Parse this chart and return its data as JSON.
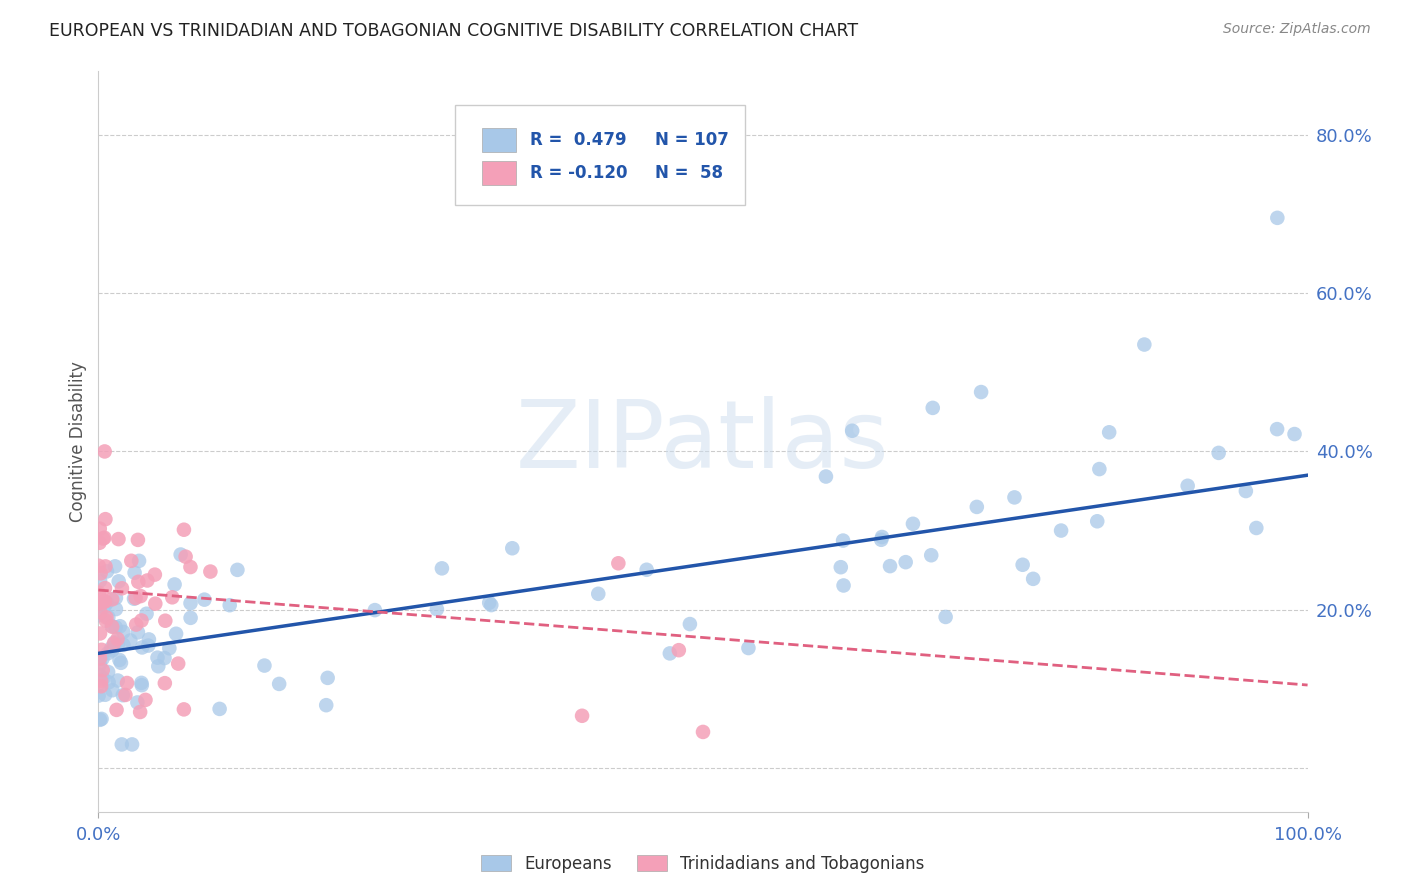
{
  "title": "EUROPEAN VS TRINIDADIAN AND TOBAGONIAN COGNITIVE DISABILITY CORRELATION CHART",
  "source": "Source: ZipAtlas.com",
  "ylabel": "Cognitive Disability",
  "blue_R": 0.479,
  "blue_N": 107,
  "pink_R": -0.12,
  "pink_N": 58,
  "blue_color": "#a8c8e8",
  "pink_color": "#f4a0b8",
  "blue_line_color": "#2255aa",
  "pink_line_color": "#e06080",
  "axis_color": "#4472c4",
  "watermark_text": "ZIPatlas",
  "legend_blue_label": "Europeans",
  "legend_pink_label": "Trinidadians and Tobagonians",
  "xlim": [
    0.0,
    1.0
  ],
  "ylim": [
    -0.055,
    0.88
  ],
  "blue_trend_start": 0.145,
  "blue_trend_end": 0.37,
  "pink_trend_start": 0.225,
  "pink_trend_end": 0.105
}
